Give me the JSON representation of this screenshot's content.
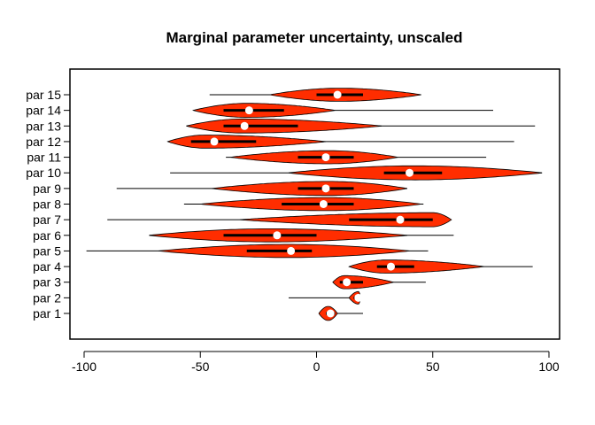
{
  "chart_data": {
    "type": "violin",
    "orientation": "horizontal",
    "title": "Marginal parameter uncertainty, unscaled",
    "xlabel": "",
    "ylabel": "",
    "xlim": [
      -104,
      101
    ],
    "xticks": [
      -100,
      -50,
      0,
      50,
      100
    ],
    "xtick_labels": [
      "-100",
      "-50",
      "0",
      "50",
      "100"
    ],
    "grid": false,
    "fill_color": "#ff2d00",
    "categories": [
      "par 1",
      "par 2",
      "par 3",
      "par 4",
      "par 5",
      "par 6",
      "par 7",
      "par 8",
      "par 9",
      "par 10",
      "par 11",
      "par 12",
      "par 13",
      "par 14",
      "par 15"
    ],
    "series": [
      {
        "label": "par 1",
        "min": 1,
        "max": 20,
        "q1": 4,
        "median": 6,
        "q3": 8,
        "violin_min": 1,
        "violin_max": 9,
        "mode": 5,
        "width": 0.45
      },
      {
        "label": "par 2",
        "min": -12,
        "max": 19,
        "q1": 16,
        "median": 18,
        "q3": 19,
        "violin_min": 14,
        "violin_max": 19,
        "mode": 18,
        "width": 0.4
      },
      {
        "label": "par 3",
        "min": 7,
        "max": 47,
        "q1": 10,
        "median": 13,
        "q3": 20,
        "violin_min": 7,
        "violin_max": 33,
        "mode": 12,
        "width": 0.42
      },
      {
        "label": "par 4",
        "min": 14,
        "max": 93,
        "q1": 26,
        "median": 32,
        "q3": 42,
        "violin_min": 14,
        "violin_max": 72,
        "mode": 30,
        "width": 0.42
      },
      {
        "label": "par 5",
        "min": -99,
        "max": 48,
        "q1": -30,
        "median": -11,
        "q3": -2,
        "violin_min": -68,
        "violin_max": 40,
        "mode": -12,
        "width": 0.42
      },
      {
        "label": "par 6",
        "min": -72,
        "max": 59,
        "q1": -40,
        "median": -17,
        "q3": 0,
        "violin_min": -72,
        "violin_max": 39,
        "mode": -20,
        "width": 0.42
      },
      {
        "label": "par 7",
        "min": -90,
        "max": 58,
        "q1": 14,
        "median": 36,
        "q3": 50,
        "violin_min": -33,
        "violin_max": 58,
        "mode": 50,
        "width": 0.45
      },
      {
        "label": "par 8",
        "min": -57,
        "max": 46,
        "q1": -15,
        "median": 3,
        "q3": 16,
        "violin_min": -50,
        "violin_max": 45,
        "mode": 4,
        "width": 0.42
      },
      {
        "label": "par 9",
        "min": -86,
        "max": 39,
        "q1": -8,
        "median": 4,
        "q3": 16,
        "violin_min": -45,
        "violin_max": 39,
        "mode": 5,
        "width": 0.45
      },
      {
        "label": "par 10",
        "min": -63,
        "max": 97,
        "q1": 29,
        "median": 40,
        "q3": 54,
        "violin_min": -12,
        "violin_max": 97,
        "mode": 42,
        "width": 0.45
      },
      {
        "label": "par 11",
        "min": -39,
        "max": 73,
        "q1": -8,
        "median": 4,
        "q3": 16,
        "violin_min": -37,
        "violin_max": 35,
        "mode": 5,
        "width": 0.42
      },
      {
        "label": "par 12",
        "min": -64,
        "max": 85,
        "q1": -54,
        "median": -44,
        "q3": -26,
        "violin_min": -64,
        "violin_max": 4,
        "mode": -48,
        "width": 0.42
      },
      {
        "label": "par 13",
        "min": -56,
        "max": 94,
        "q1": -40,
        "median": -31,
        "q3": -8,
        "violin_min": -56,
        "violin_max": 28,
        "mode": -32,
        "width": 0.45
      },
      {
        "label": "par 14",
        "min": -53,
        "max": 76,
        "q1": -40,
        "median": -29,
        "q3": -14,
        "violin_min": -53,
        "violin_max": 8,
        "mode": -30,
        "width": 0.45
      },
      {
        "label": "par 15",
        "min": -46,
        "max": 45,
        "q1": 0,
        "median": 9,
        "q3": 20,
        "violin_min": -20,
        "violin_max": 45,
        "mode": 10,
        "width": 0.42
      }
    ]
  }
}
